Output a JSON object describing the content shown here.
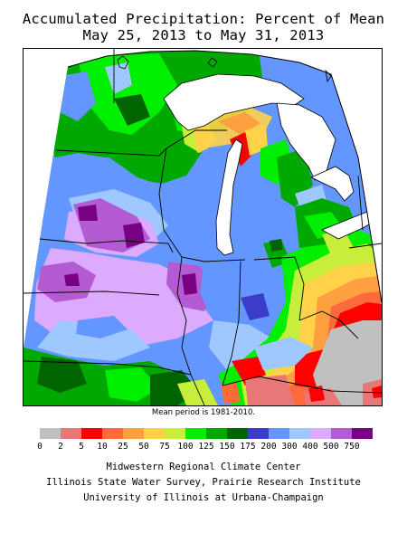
{
  "title": {
    "line1": "Accumulated Precipitation: Percent of Mean",
    "line2": "May 25, 2013 to May 31, 2013"
  },
  "mean_note": "Mean period is 1981-2010.",
  "legend": {
    "labels": [
      "0",
      "2",
      "5",
      "10",
      "25",
      "50",
      "75",
      "100",
      "125",
      "150",
      "175",
      "200",
      "300",
      "400",
      "500",
      "750"
    ],
    "colors": [
      "#c0c0c0",
      "#e87878",
      "#ff0000",
      "#ff6a3c",
      "#ffa040",
      "#ffd24a",
      "#c8ee3c",
      "#00ee00",
      "#00a800",
      "#006400",
      "#3c3cc8",
      "#6496ff",
      "#9ec8ff",
      "#dcaaff",
      "#b45ad2",
      "#780082"
    ]
  },
  "credits": {
    "line1": "Midwestern Regional Climate Center",
    "line2": "Illinois State Water Survey, Prairie Research Institute",
    "line3": "University of Illinois at Urbana-Champaign"
  },
  "map_colors": {
    "gray": "#c0c0c0",
    "pink": "#e87878",
    "red": "#ff0000",
    "orange": "#ff6a3c",
    "light_orange": "#ffa040",
    "yellow": "#ffd24a",
    "yellow_green": "#c8ee3c",
    "green": "#00ee00",
    "mid_green": "#00a800",
    "dark_green": "#006400",
    "blue": "#3c3cc8",
    "med_blue": "#6496ff",
    "light_blue": "#9ec8ff",
    "lavender": "#dcaaff",
    "purple": "#b45ad2",
    "dark_purple": "#780082",
    "water": "#ffffff",
    "border": "#000000"
  }
}
